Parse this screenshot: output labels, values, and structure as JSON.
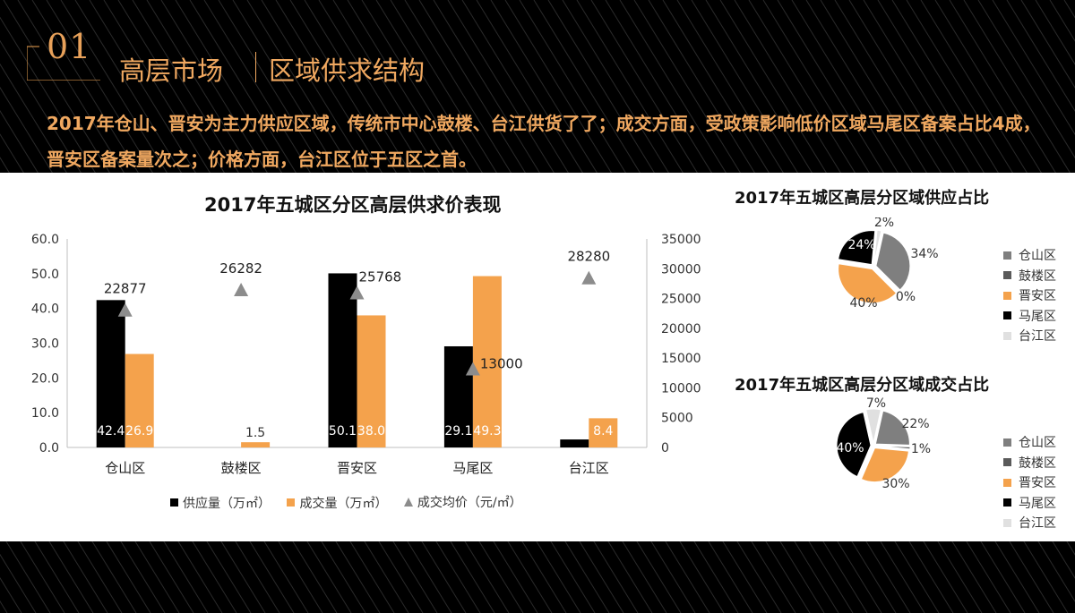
{
  "header": {
    "number": "01",
    "title_main": "高层市场",
    "title_sub": "区域供求结构",
    "description": "2017年仓山、晋安为主力供应区域，传统市中心鼓楼、台江供货了了；成交方面，受政策影响低价区域马尾区备案占比4成，晋安区备案量次之；价格方面，台江区位于五区之首。",
    "accent_color": "#f0a860"
  },
  "chart_data": [
    {
      "type": "bar",
      "title": "2017年五城区分区高层供求价表现",
      "categories": [
        "仓山区",
        "鼓楼区",
        "晋安区",
        "马尾区",
        "台江区"
      ],
      "series": [
        {
          "name": "供应量（万㎡）",
          "kind": "bar",
          "axis": "left",
          "color": "#000000",
          "values": [
            42.4,
            null,
            50.1,
            29.1,
            2.3
          ],
          "labels": [
            "42.4",
            "",
            "50.1",
            "29.1",
            ""
          ]
        },
        {
          "name": "成交量（万㎡）",
          "kind": "bar",
          "axis": "left",
          "color": "#f4a24c",
          "values": [
            26.9,
            1.5,
            38.0,
            49.3,
            8.4
          ],
          "labels": [
            "26.9",
            "1.5",
            "38.0",
            "49.3",
            "8.4"
          ]
        },
        {
          "name": "成交均价（元/㎡）",
          "kind": "marker",
          "axis": "right",
          "color": "#8c8c8c",
          "values": [
            22877,
            26282,
            25768,
            13000,
            28280
          ],
          "labels": [
            "22877",
            "26282",
            "25768",
            "13000",
            "28280"
          ]
        }
      ],
      "ylim": [
        0,
        60
      ],
      "y2lim": [
        0,
        35000
      ],
      "yticks": [
        "0.0",
        "10.0",
        "20.0",
        "30.0",
        "40.0",
        "50.0",
        "60.0"
      ],
      "y2ticks": [
        "0",
        "5000",
        "10000",
        "15000",
        "20000",
        "25000",
        "30000",
        "35000"
      ],
      "legend_position": "bottom"
    },
    {
      "type": "pie",
      "title": "2017年五城区高层分区域供应占比",
      "categories": [
        "仓山区",
        "鼓楼区",
        "晋安区",
        "马尾区",
        "台江区"
      ],
      "values": [
        34,
        0,
        40,
        24,
        2
      ],
      "labels": [
        "34%",
        "0%",
        "40%",
        "24%",
        "2%"
      ],
      "colors": [
        "#7f7f7f",
        "#5a5a5a",
        "#f4a24c",
        "#000000",
        "#e0e0e0"
      ],
      "legend_position": "right"
    },
    {
      "type": "pie",
      "title": "2017年五城区高层分区域成交占比",
      "categories": [
        "仓山区",
        "鼓楼区",
        "晋安区",
        "马尾区",
        "台江区"
      ],
      "values": [
        22,
        1,
        30,
        40,
        7
      ],
      "labels": [
        "22%",
        "1%",
        "30%",
        "40%",
        "7%"
      ],
      "colors": [
        "#7f7f7f",
        "#5a5a5a",
        "#f4a24c",
        "#000000",
        "#e0e0e0"
      ],
      "legend_position": "right"
    }
  ]
}
